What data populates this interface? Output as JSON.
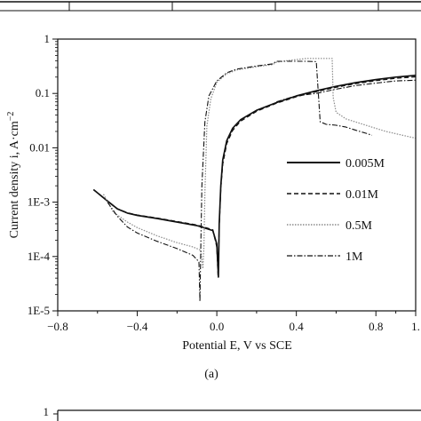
{
  "chart_data": {
    "type": "line",
    "xlabel": "Potential E, V vs SCE",
    "ylabel": "Current density i, A·cm",
    "ylabel_exp": "−2",
    "caption": "(a)",
    "xlim": [
      -0.8,
      1.0
    ],
    "ylim": [
      1e-05,
      1
    ],
    "yscale": "log",
    "x_ticks": [
      "−0.8",
      "−0.4",
      "0.0",
      "0.4",
      "0.8",
      "1."
    ],
    "x_tick_values": [
      -0.8,
      -0.4,
      0.0,
      0.4,
      0.8,
      1.0
    ],
    "y_ticks": [
      "1E-5",
      "1E-4",
      "1E-3",
      "0.01",
      "0.1",
      "1"
    ],
    "y_tick_values": [
      1e-05,
      0.0001,
      0.001,
      0.01,
      0.1,
      1
    ],
    "next_panel_tick": "1",
    "legend_position": "right",
    "colors": {
      "axis": "#111111",
      "line": "#111111",
      "dotted": "#8a8a8a"
    },
    "series": [
      {
        "name": "0.005M",
        "style": "solid",
        "points": [
          [
            -0.62,
            0.0017
          ],
          [
            -0.55,
            0.00105
          ],
          [
            -0.5,
            0.00075
          ],
          [
            -0.45,
            0.00063
          ],
          [
            -0.4,
            0.00057
          ],
          [
            -0.3,
            0.0005
          ],
          [
            -0.2,
            0.00043
          ],
          [
            -0.1,
            0.00037
          ],
          [
            -0.02,
            0.0003
          ],
          [
            0.0,
            0.00017
          ],
          [
            0.008,
            4.2e-05
          ],
          [
            0.012,
            0.0004
          ],
          [
            0.02,
            0.002
          ],
          [
            0.03,
            0.006
          ],
          [
            0.05,
            0.0135
          ],
          [
            0.08,
            0.023
          ],
          [
            0.12,
            0.033
          ],
          [
            0.2,
            0.049
          ],
          [
            0.3,
            0.068
          ],
          [
            0.4,
            0.09
          ],
          [
            0.5,
            0.112
          ],
          [
            0.6,
            0.135
          ],
          [
            0.7,
            0.158
          ],
          [
            0.8,
            0.18
          ],
          [
            0.9,
            0.2
          ],
          [
            1.0,
            0.215
          ]
        ]
      },
      {
        "name": "0.01M",
        "style": "dashed",
        "points": [
          [
            -0.62,
            0.0017
          ],
          [
            -0.55,
            0.00105
          ],
          [
            -0.5,
            0.00075
          ],
          [
            -0.45,
            0.00064
          ],
          [
            -0.4,
            0.00058
          ],
          [
            -0.3,
            0.00051
          ],
          [
            -0.2,
            0.00044
          ],
          [
            -0.1,
            0.00038
          ],
          [
            -0.02,
            0.00031
          ],
          [
            0.0,
            0.00015
          ],
          [
            0.006,
            4.5e-05
          ],
          [
            0.012,
            0.00035
          ],
          [
            0.02,
            0.0018
          ],
          [
            0.03,
            0.005
          ],
          [
            0.05,
            0.012
          ],
          [
            0.08,
            0.021
          ],
          [
            0.12,
            0.031
          ],
          [
            0.2,
            0.047
          ],
          [
            0.3,
            0.066
          ],
          [
            0.4,
            0.087
          ],
          [
            0.5,
            0.108
          ],
          [
            0.6,
            0.13
          ],
          [
            0.7,
            0.152
          ],
          [
            0.8,
            0.172
          ],
          [
            0.9,
            0.19
          ],
          [
            1.0,
            0.202
          ]
        ]
      },
      {
        "name": "0.5M",
        "style": "dotted",
        "points": [
          [
            -0.57,
            0.0014
          ],
          [
            -0.52,
            0.00065
          ],
          [
            -0.45,
            0.00043
          ],
          [
            -0.4,
            0.00034
          ],
          [
            -0.3,
            0.00024
          ],
          [
            -0.2,
            0.00018
          ],
          [
            -0.12,
            0.00015
          ],
          [
            -0.08,
            0.00013
          ],
          [
            -0.07,
            6e-05
          ],
          [
            -0.065,
            0.00015
          ],
          [
            -0.06,
            0.0015
          ],
          [
            -0.05,
            0.025
          ],
          [
            -0.03,
            0.08
          ],
          [
            0.0,
            0.16
          ],
          [
            0.05,
            0.23
          ],
          [
            0.1,
            0.27
          ],
          [
            0.2,
            0.31
          ],
          [
            0.28,
            0.34
          ],
          [
            0.3,
            0.375
          ],
          [
            0.35,
            0.4
          ],
          [
            0.45,
            0.44
          ],
          [
            0.58,
            0.44
          ],
          [
            0.585,
            0.085
          ],
          [
            0.6,
            0.045
          ],
          [
            0.65,
            0.034
          ],
          [
            0.75,
            0.026
          ],
          [
            0.85,
            0.02
          ],
          [
            0.95,
            0.0165
          ],
          [
            1.0,
            0.015
          ]
        ]
      },
      {
        "name": "1M",
        "style": "dashdot",
        "points": [
          [
            -0.55,
            0.001
          ],
          [
            -0.5,
            0.00055
          ],
          [
            -0.45,
            0.00035
          ],
          [
            -0.4,
            0.00027
          ],
          [
            -0.3,
            0.00019
          ],
          [
            -0.2,
            0.00014
          ],
          [
            -0.12,
            0.000105
          ],
          [
            -0.09,
            8e-05
          ],
          [
            -0.085,
            1.5e-05
          ],
          [
            -0.08,
            0.0002
          ],
          [
            -0.075,
            0.002
          ],
          [
            -0.06,
            0.03
          ],
          [
            -0.04,
            0.09
          ],
          [
            0.0,
            0.17
          ],
          [
            0.05,
            0.24
          ],
          [
            0.1,
            0.28
          ],
          [
            0.2,
            0.32
          ],
          [
            0.28,
            0.35
          ],
          [
            0.3,
            0.39
          ],
          [
            0.45,
            0.39
          ],
          [
            0.5,
            0.385
          ],
          [
            0.52,
            0.03
          ],
          [
            0.55,
            0.027
          ],
          [
            0.6,
            0.026
          ],
          [
            0.65,
            0.024
          ],
          [
            0.7,
            0.021
          ],
          [
            0.75,
            0.0185
          ],
          [
            0.78,
            0.017
          ]
        ]
      }
    ],
    "extra_series": {
      "style": "dashdot",
      "points": [
        [
          0.3,
          0.07
        ],
        [
          0.35,
          0.08
        ],
        [
          0.4,
          0.09
        ],
        [
          0.5,
          0.1
        ],
        [
          0.6,
          0.12
        ],
        [
          0.7,
          0.14
        ],
        [
          0.8,
          0.155
        ],
        [
          0.9,
          0.17
        ],
        [
          1.0,
          0.175
        ]
      ]
    }
  }
}
